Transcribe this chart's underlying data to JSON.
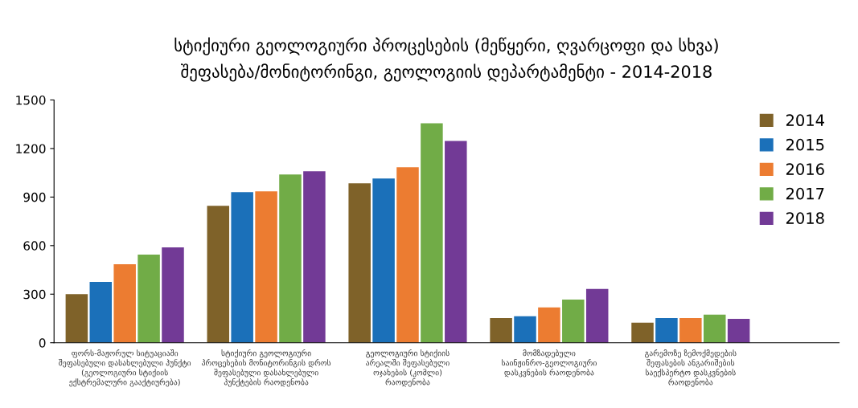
{
  "chart_data": {
    "type": "bar",
    "title": "სტიქიური გეოლოგიური პროცესების (მეწყერი, ღვარცოფი და სხვა)\nშეფასება/მონიტორინგი, გეოლოგიის დეპარტამენტი - 2014-2018",
    "categories": [
      "ფორს-მაჟორულ სიტუაციაში\nშეფასებული დასახლებული პუნქტი\n(გეოლოგიური სტიქიის\nექსტრემალური გააქტიურება)",
      "სტიქიური გეოლოგიური\nპროცესების მონიტორინგის დროს\nშეფასებული დასახლებული\nპუნქტების რაოდენობა",
      "გეოლოგიური სტიქიის\nარეალში შეფასებული\nოჯახების (კომლი)\nრაოდენობა",
      "მომზადებული\nსაინჟინრო-გეოლოგიური\nდასკვნების რაოდენობა",
      "გარემოზე ზემოქმედების\nშეფასების ანგარიშების\nსაექსპერტო დასკვნების\nრაოდენობა"
    ],
    "series": [
      {
        "name": "2014",
        "color": "#7f6229",
        "values": [
          300,
          846,
          985,
          153,
          124
        ]
      },
      {
        "name": "2015",
        "color": "#1b70b9",
        "values": [
          376,
          930,
          1015,
          163,
          153
        ]
      },
      {
        "name": "2016",
        "color": "#ec7c31",
        "values": [
          485,
          935,
          1084,
          218,
          153
        ]
      },
      {
        "name": "2017",
        "color": "#71ac47",
        "values": [
          545,
          1040,
          1356,
          267,
          173
        ]
      },
      {
        "name": "2018",
        "color": "#723a96",
        "values": [
          589,
          1059,
          1247,
          332,
          148
        ]
      }
    ],
    "ylim": [
      0,
      1500
    ],
    "yticks": [
      0,
      300,
      600,
      900,
      1200,
      1500
    ],
    "grid": false,
    "legend": "top right"
  }
}
